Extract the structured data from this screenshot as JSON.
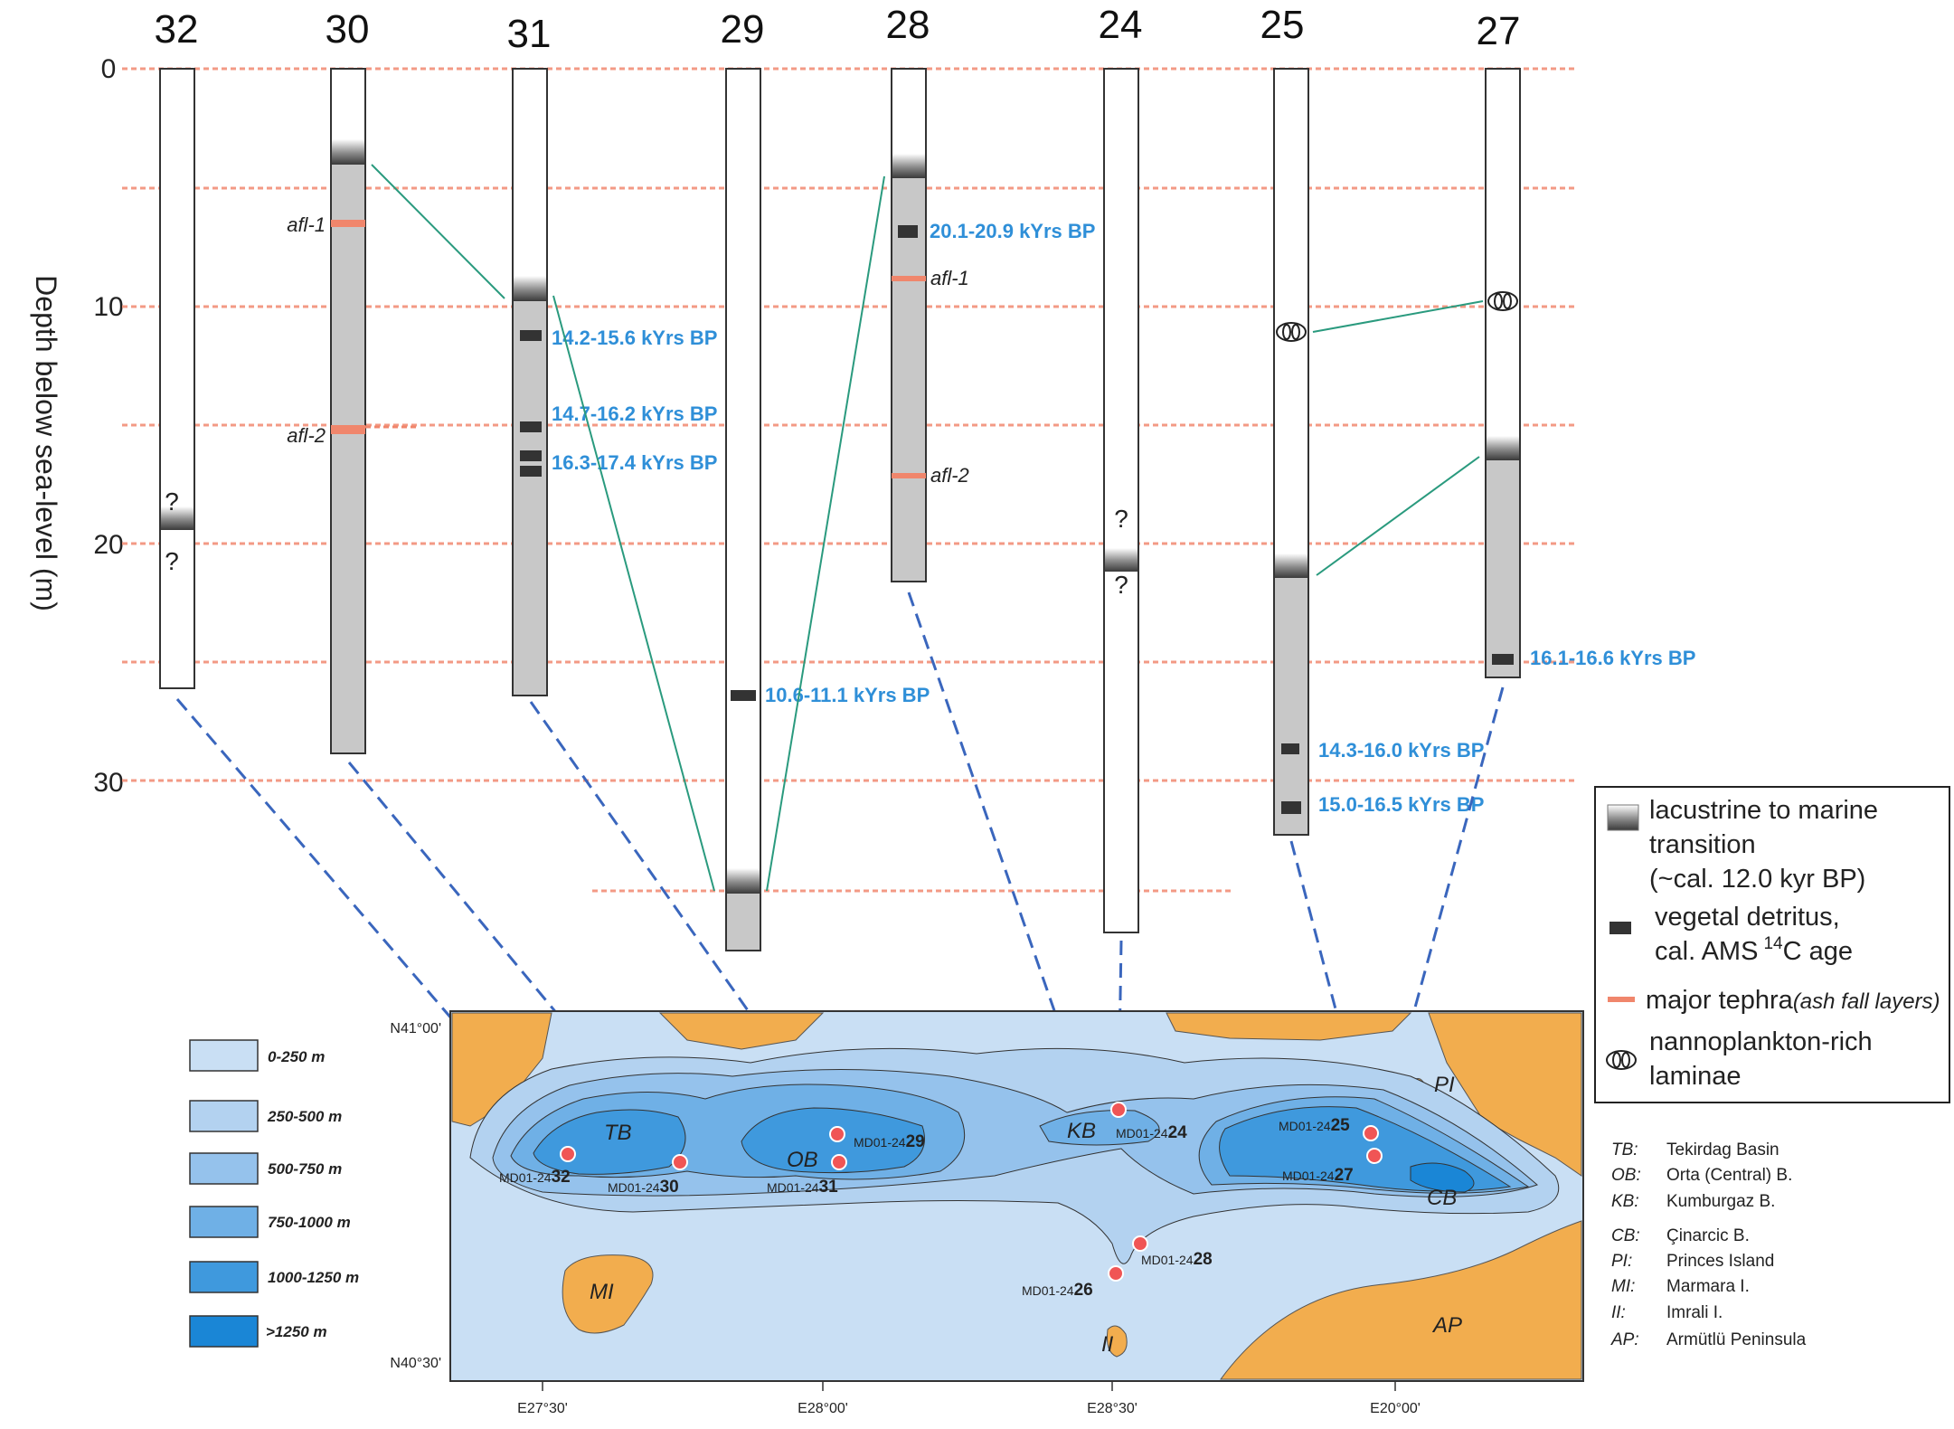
{
  "y_axis": {
    "label": "Depth below sea-level (m)",
    "ticks": [
      "0",
      "10",
      "20",
      "30"
    ]
  },
  "cores": [
    {
      "id": "32",
      "bottom_m": 26.0
    },
    {
      "id": "30",
      "bottom_m": 28.8
    },
    {
      "id": "31",
      "bottom_m": 26.3
    },
    {
      "id": "29",
      "bottom_m": 37.0
    },
    {
      "id": "28",
      "bottom_m": 21.6
    },
    {
      "id": "24",
      "bottom_m": 36.2
    },
    {
      "id": "25",
      "bottom_m": 32.3
    },
    {
      "id": "27",
      "bottom_m": 25.6
    }
  ],
  "ages": {
    "c28_a": "20.1-20.9 kYrs BP",
    "c31_a": "14.2-15.6 kYrs BP",
    "c31_b": "14.7-16.2 kYrs BP",
    "c31_c": "16.3-17.4 kYrs BP",
    "c29_a": "10.6-11.1 kYrs BP",
    "c27_a": "16.1-16.6 kYrs BP",
    "c25_a": "14.3-16.0 kYrs BP",
    "c25_b": "15.0-16.5 kYrs BP"
  },
  "tephra_labels": {
    "c30_afl1": "afl-1",
    "c30_afl2": "afl-2",
    "c28_afl1": "afl-1",
    "c28_afl2": "afl-2"
  },
  "uncertain_marks": [
    "?",
    "?",
    "?",
    "?"
  ],
  "legend": {
    "transition": [
      "lacustrine to marine",
      "transition",
      "(~cal. 12.0 kyr BP)"
    ],
    "vegetal": [
      "vegetal detritus,",
      "cal. AMS",
      "14",
      "C age"
    ],
    "tephra": "major tephra",
    "tephra_note": "(ash fall layers)",
    "nanno": [
      "nannoplankton-rich",
      "laminae"
    ]
  },
  "bathymetry_legend": [
    "0-250 m",
    "250-500 m",
    "500-750 m",
    "750-1000 m",
    "1000-1250 m",
    ">1250 m"
  ],
  "bathymetry_colors": [
    "#c9dff4",
    "#b3d2f0",
    "#95c2ec",
    "#6fb0e6",
    "#3f99dd",
    "#1a86d6"
  ],
  "land_color": "#f2ad4e",
  "map_sites": [
    {
      "prefix": "MD01-24",
      "num": "32"
    },
    {
      "prefix": "MD01-24",
      "num": "30"
    },
    {
      "prefix": "MD01-24",
      "num": "29"
    },
    {
      "prefix": "MD01-24",
      "num": "31"
    },
    {
      "prefix": "MD01-24",
      "num": "24"
    },
    {
      "prefix": "MD01-24",
      "num": "25"
    },
    {
      "prefix": "MD01-24",
      "num": "27"
    },
    {
      "prefix": "MD01-24",
      "num": "28"
    },
    {
      "prefix": "MD01-24",
      "num": "26"
    }
  ],
  "basin_labels": {
    "TB": "TB",
    "OB": "OB",
    "KB": "KB",
    "CB": "CB",
    "PI": "PI",
    "MI": "MI",
    "II": "II",
    "AP": "AP"
  },
  "coords": {
    "lat_top": "N41°00'",
    "lat_bottom": "N40°30'",
    "lon": [
      "E27°30'",
      "E28°00'",
      "E28°30'",
      "E20°00'"
    ]
  },
  "abbreviations": [
    {
      "abbr": "TB:",
      "name": "Tekirdag Basin"
    },
    {
      "abbr": "OB:",
      "name": "Orta (Central) B."
    },
    {
      "abbr": "KB:",
      "name": "Kumburgaz B."
    },
    {
      "abbr": "CB:",
      "name": "Çinarcic B."
    },
    {
      "abbr": "PI:",
      "name": "Princes Island"
    },
    {
      "abbr": "MI:",
      "name": "Marmara I."
    },
    {
      "abbr": "II:",
      "name": "Imrali I."
    },
    {
      "abbr": "AP:",
      "name": "Armütlü Peninsula"
    }
  ]
}
